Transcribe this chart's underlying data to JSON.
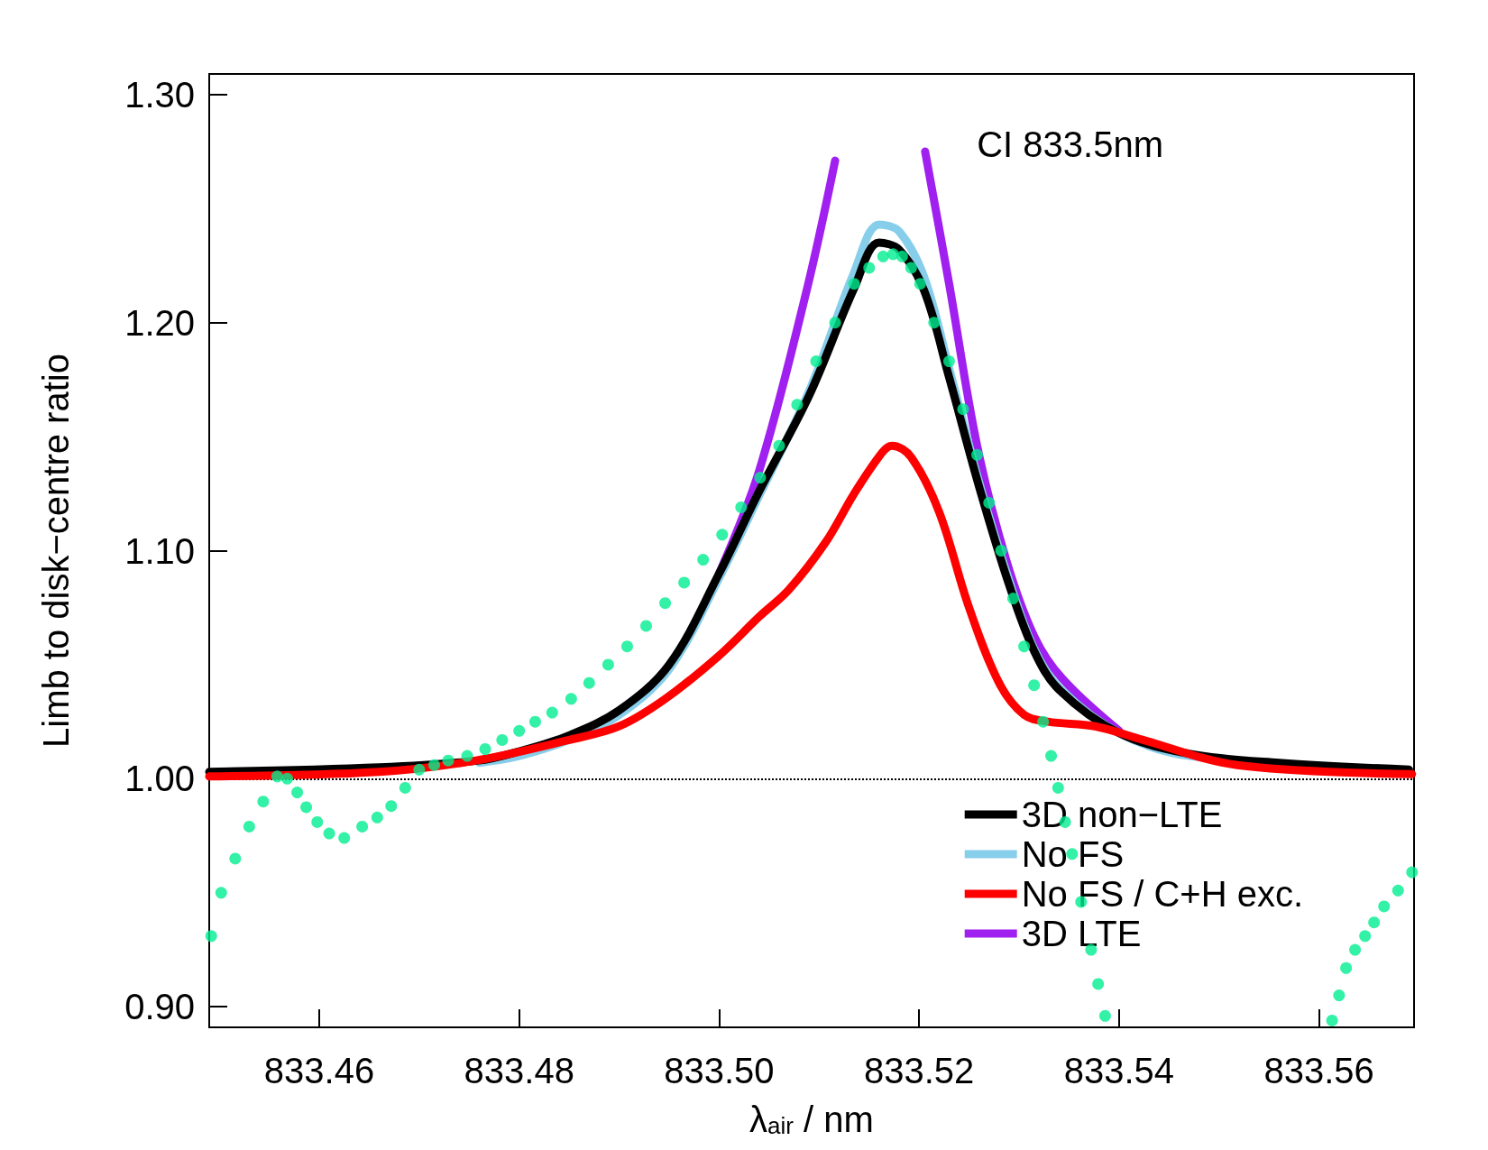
{
  "chart_data": {
    "type": "line",
    "xlabel": "λ$_{air}$ / nm",
    "ylabel": "Limb to disk−centre ratio",
    "annotations": [
      "CI 833.5nm"
    ],
    "xlim": [
      833.449,
      833.5695
    ],
    "ylim": [
      0.891,
      1.309
    ],
    "xticks": [
      {
        "value": 833.46,
        "label": "833.46"
      },
      {
        "value": 833.48,
        "label": "833.48"
      },
      {
        "value": 833.5,
        "label": "833.50"
      },
      {
        "value": 833.52,
        "label": "833.52"
      },
      {
        "value": 833.54,
        "label": "833.54"
      },
      {
        "value": 833.56,
        "label": "833.56"
      }
    ],
    "yticks": [
      {
        "value": 0.9,
        "label": "0.90"
      },
      {
        "value": 1.0,
        "label": "1.00"
      },
      {
        "value": 1.1,
        "label": "1.10"
      },
      {
        "value": 1.2,
        "label": "1.20"
      },
      {
        "value": 1.3,
        "label": "1.30"
      }
    ],
    "grid": false,
    "legend": "bottom right",
    "ref_lines": [
      {
        "axis": "y",
        "value": 1.0,
        "color": "#000000",
        "line_style": "dotted"
      }
    ],
    "series": [
      {
        "name": "3D LTE",
        "color": "#a020f0",
        "marker": "none",
        "x": [
          833.5,
          833.504,
          833.5088,
          833.5116,
          833.516,
          833.5206,
          833.523,
          833.5258,
          833.5287,
          833.5315,
          833.5343,
          833.54
        ],
        "values": [
          1.09,
          1.135,
          1.215,
          1.271,
          null,
          1.275,
          1.217,
          1.146,
          1.096,
          1.0625,
          1.044,
          1.021
        ]
      },
      {
        "name": "No FS",
        "color": "#87ceeb",
        "marker": "none",
        "x": [
          833.476,
          833.48,
          833.485,
          833.49,
          833.495,
          833.5,
          833.504,
          833.509,
          833.5135,
          833.516,
          833.518,
          833.5205,
          833.523,
          833.526,
          833.529,
          833.5315,
          833.534,
          833.54,
          833.547,
          833.569
        ],
        "values": [
          1.007,
          1.01,
          1.017,
          1.028,
          1.048,
          1.088,
          1.124,
          1.17,
          1.222,
          1.243,
          1.24,
          1.22,
          1.18,
          1.13,
          1.087,
          1.057,
          1.04,
          1.02,
          1.01,
          1.003
        ]
      },
      {
        "name": "3D non−LTE",
        "color": "#000000",
        "marker": "none",
        "x": [
          833.449,
          833.466,
          833.476,
          833.48,
          833.485,
          833.49,
          833.495,
          833.5,
          833.504,
          833.509,
          833.5135,
          833.516,
          833.518,
          833.5205,
          833.523,
          833.526,
          833.529,
          833.5315,
          833.534,
          833.54,
          833.547,
          833.556,
          833.569
        ],
        "values": [
          1.003,
          1.005,
          1.008,
          1.012,
          1.019,
          1.03,
          1.05,
          1.09,
          1.126,
          1.168,
          1.215,
          1.235,
          1.232,
          1.214,
          1.176,
          1.128,
          1.085,
          1.056,
          1.039,
          1.02,
          1.011,
          1.007,
          1.004
        ]
      },
      {
        "name": "No FS / C+H exc.",
        "color": "#ff0000",
        "marker": "none",
        "x": [
          833.449,
          833.466,
          833.4757,
          833.485,
          833.49,
          833.4946,
          833.5,
          833.504,
          833.507,
          833.5107,
          833.5135,
          833.5163,
          833.5173,
          833.5192,
          833.522,
          833.525,
          833.528,
          833.5305,
          833.5329,
          833.5376,
          833.5424,
          833.5518,
          833.5693
        ],
        "values": [
          1.001,
          1.003,
          1.008,
          1.017,
          1.023,
          1.035,
          1.054,
          1.071,
          1.083,
          1.104,
          1.125,
          1.143,
          1.146,
          1.141,
          1.117,
          1.075,
          1.042,
          1.028,
          1.025,
          1.023,
          1.017,
          1.006,
          1.002
        ]
      },
      {
        "type": "scatter",
        "color": "#00ee90",
        "marker": "circle",
        "x": [
          833.4492,
          833.4502,
          833.4516,
          833.453,
          833.4544,
          833.4558,
          833.4568,
          833.4578,
          833.4587,
          833.4598,
          833.461,
          833.4625,
          833.4643,
          833.4658,
          833.4672,
          833.4686,
          833.47,
          833.4715,
          833.4729,
          833.4748,
          833.4766,
          833.4783,
          833.48,
          833.4816,
          833.4833,
          833.4852,
          833.487,
          833.4889,
          833.4908,
          833.4927,
          833.4946,
          833.4965,
          833.4984,
          833.5003,
          833.5022,
          833.5041,
          833.506,
          833.5078,
          833.5097,
          833.5116,
          833.5135,
          833.515,
          833.5164,
          833.5174,
          833.5183,
          833.5192,
          833.5201,
          833.5215,
          833.523,
          833.5244,
          833.5258,
          833.527,
          833.5282,
          833.5294,
          833.5305,
          833.5315,
          833.5324,
          833.5332,
          833.5339,
          833.5346,
          833.5353,
          833.5362,
          833.5372,
          833.5379,
          833.5386,
          833.5613,
          833.562,
          833.5627,
          833.5636,
          833.5646,
          833.5655,
          833.5665,
          833.5679,
          833.5693
        ],
        "values": [
          0.931,
          0.95,
          0.965,
          0.979,
          0.99,
          1.001,
          1.0,
          0.994,
          0.9875,
          0.981,
          0.976,
          0.974,
          0.979,
          0.983,
          0.988,
          0.996,
          1.004,
          1.006,
          1.008,
          1.01,
          1.013,
          1.017,
          1.021,
          1.025,
          1.029,
          1.035,
          1.042,
          1.05,
          1.058,
          1.067,
          1.077,
          1.086,
          1.096,
          1.107,
          1.119,
          1.132,
          1.146,
          1.164,
          1.183,
          1.2,
          1.217,
          1.224,
          1.229,
          1.23,
          1.229,
          1.224,
          1.217,
          1.2,
          1.183,
          1.162,
          1.142,
          1.121,
          1.1,
          1.079,
          1.058,
          1.041,
          1.025,
          1.01,
          0.996,
          0.981,
          0.967,
          0.946,
          0.925,
          0.91,
          0.896,
          0.894,
          0.905,
          0.917,
          0.925,
          0.931,
          0.937,
          0.944,
          0.951,
          0.959
        ]
      }
    ]
  }
}
